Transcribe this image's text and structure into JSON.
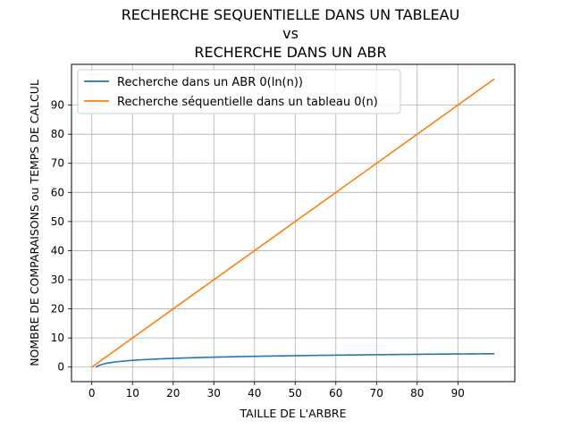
{
  "chart_data": {
    "type": "line",
    "title_lines": [
      "RECHERCHE SEQUENTIELLE DANS UN TABLEAU",
      "vs",
      "RECHERCHE DANS UN ABR"
    ],
    "xlabel": "TAILLE DE L'ARBRE",
    "ylabel": "NOMBRE DE COMPARAISONS ou TEMPS DE CALCUL",
    "xlim": [
      -5,
      104
    ],
    "ylim": [
      -5,
      104
    ],
    "xticks": [
      0,
      10,
      20,
      30,
      40,
      50,
      60,
      70,
      80,
      90
    ],
    "yticks": [
      0,
      10,
      20,
      30,
      40,
      50,
      60,
      70,
      80,
      90
    ],
    "grid": true,
    "legend": "upper-left",
    "series": [
      {
        "name": "Recherche dans un ABR 0(ln(n))",
        "color": "#1f77b4",
        "x": [
          1,
          2,
          3,
          4,
          5,
          7,
          10,
          15,
          20,
          30,
          40,
          50,
          60,
          70,
          80,
          90,
          99
        ],
        "y": [
          0,
          0.69,
          1.1,
          1.39,
          1.61,
          1.95,
          2.3,
          2.71,
          3.0,
          3.4,
          3.69,
          3.91,
          4.09,
          4.25,
          4.38,
          4.5,
          4.6
        ]
      },
      {
        "name": "Recherche séquentielle dans un tableau 0(n)",
        "color": "#ff7f0e",
        "x": [
          0,
          99
        ],
        "y": [
          0,
          99
        ]
      }
    ]
  }
}
